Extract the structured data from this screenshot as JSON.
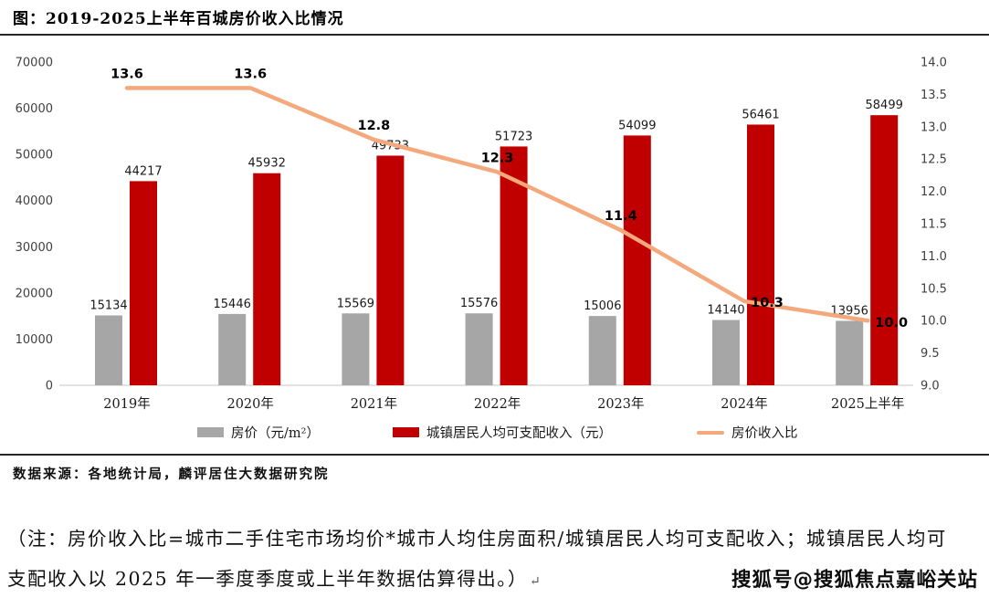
{
  "header": {
    "title": "图：2019-2025上半年百城房价收入比情况"
  },
  "chart_data": {
    "type": "bar",
    "subtype": "grouped-bars-with-line",
    "title": "图：2019-2025上半年百城房价收入比情况",
    "categories": [
      "2019年",
      "2020年",
      "2021年",
      "2022年",
      "2023年",
      "2024年",
      "2025上半年"
    ],
    "series": [
      {
        "name": "房价（元/m²）",
        "type": "bar",
        "axis": "left",
        "color": "#a6a6a6",
        "values": [
          15134,
          15446,
          15569,
          15576,
          15006,
          14140,
          13956
        ]
      },
      {
        "name": "城镇居民人均可支配收入（元）",
        "type": "bar",
        "axis": "left",
        "color": "#c00000",
        "values": [
          44217,
          45932,
          49733,
          51723,
          54099,
          56461,
          58499
        ]
      },
      {
        "name": "房价收入比",
        "type": "line",
        "axis": "right",
        "color": "#f4a97c",
        "values": [
          13.6,
          13.6,
          12.8,
          12.3,
          11.4,
          10.3,
          10.0
        ],
        "labels": [
          "13.6",
          "13.6",
          "12.8",
          "12.3",
          "11.4",
          "10.3",
          "10.0"
        ]
      }
    ],
    "left_axis": {
      "min": 0,
      "max": 70000,
      "step": 10000,
      "tick_labels": [
        "0",
        "10000",
        "20000",
        "30000",
        "40000",
        "50000",
        "60000",
        "70000"
      ]
    },
    "right_axis": {
      "min": 9.0,
      "max": 14.0,
      "step": 0.5,
      "tick_labels": [
        "9.0",
        "9.5",
        "10.0",
        "10.5",
        "11.0",
        "11.5",
        "12.0",
        "12.5",
        "13.0",
        "13.5",
        "14.0"
      ]
    },
    "grid": false,
    "legend_position": "bottom"
  },
  "footer": {
    "source": "数据来源：各地统计局，麟评居住大数据研究院",
    "note_lines": [
      "（注：房价收入比=城市二手住宅市场均价*城市人均住房面积/城镇居民人均可支配收入；城镇居民人均可",
      "支配收入以 2025 年一季度季度或上半年数据估算得出。）"
    ],
    "return_mark": "↵",
    "watermark": "搜狐号@搜狐焦点嘉峪关站"
  }
}
